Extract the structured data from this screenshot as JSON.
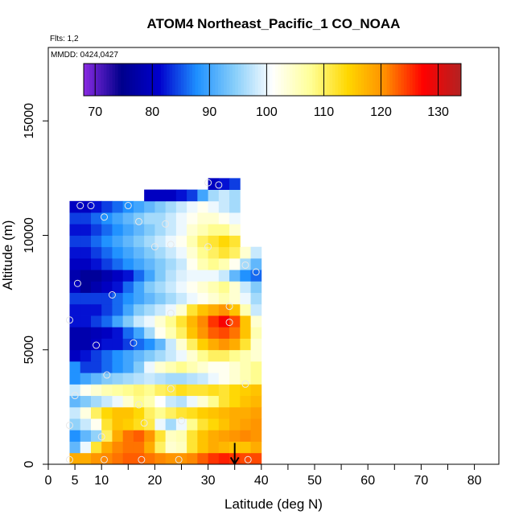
{
  "chart_data": {
    "type": "heatmap",
    "title": "ATOM4 Northeast_Pacific_1 CO_NOAA",
    "flights_note": "Flts: 1,2",
    "dates_note": "MMDD: 0424,0427",
    "xlabel": "Latitude (deg N)",
    "ylabel": "Altitude (m)",
    "xlim": [
      0,
      85
    ],
    "ylim": [
      0,
      18000
    ],
    "x_ticks": [
      0,
      5,
      10,
      20,
      30,
      40,
      50,
      60,
      70,
      80
    ],
    "x_minor_ticks": [
      15,
      25,
      35,
      45,
      55,
      65,
      75,
      85
    ],
    "y_ticks": [
      0,
      5000,
      10000,
      15000
    ],
    "colorbar": {
      "ticks": [
        70,
        80,
        90,
        100,
        110,
        120,
        130
      ],
      "range": [
        68,
        134
      ],
      "colors": [
        "#8a2be2",
        "#00008b",
        "#0000cd",
        "#1e90ff",
        "#87cefa",
        "#ffffff",
        "#ffff99",
        "#ffd700",
        "#ff8c00",
        "#ff0000",
        "#b22222"
      ]
    },
    "lat_bins": [
      4,
      6,
      8,
      10,
      12,
      14,
      16,
      18,
      20,
      22,
      24,
      26,
      28,
      30,
      32,
      34,
      36,
      38
    ],
    "alt_step": 500,
    "rows": [
      {
        "alt": 0,
        "values": [
          118,
          118,
          120,
          121,
          122,
          123,
          123,
          122,
          121,
          120,
          120,
          121,
          123,
          125,
          126,
          125,
          124,
          124
        ]
      },
      {
        "alt": 500,
        "values": [
          92,
          100,
          112,
          118,
          121,
          122,
          122,
          118,
          110,
          104,
          105,
          112,
          116,
          118,
          117,
          116,
          116,
          118
        ]
      },
      {
        "alt": 1000,
        "values": [
          88,
          92,
          95,
          110,
          118,
          122,
          123,
          120,
          112,
          105,
          106,
          112,
          116,
          118,
          119,
          120,
          121,
          120
        ]
      },
      {
        "alt": 1500,
        "values": [
          95,
          98,
          102,
          112,
          116,
          115,
          113,
          111,
          100,
          96,
          100,
          108,
          112,
          114,
          116,
          118,
          119,
          120
        ]
      },
      {
        "alt": 2000,
        "values": [
          98,
          103,
          110,
          114,
          116,
          116,
          114,
          110,
          108,
          110,
          112,
          113,
          115,
          116,
          117,
          118,
          118,
          119
        ]
      },
      {
        "alt": 2500,
        "values": [
          92,
          94,
          96,
          98,
          100,
          104,
          108,
          106,
          101,
          98,
          97,
          100,
          104,
          108,
          112,
          114,
          116,
          117
        ]
      },
      {
        "alt": 3000,
        "values": [
          98,
          102,
          104,
          106,
          107,
          108,
          109,
          108,
          110,
          111,
          113,
          112,
          112,
          113,
          112,
          114,
          115,
          116
        ]
      },
      {
        "alt": 3500,
        "values": [
          88,
          90,
          92,
          94,
          95,
          96,
          97,
          98,
          97,
          96,
          96,
          97,
          98,
          100,
          102,
          104,
          106,
          108
        ]
      },
      {
        "alt": 4000,
        "values": [
          88,
          84,
          84,
          86,
          88,
          90,
          94,
          100,
          104,
          106,
          108,
          106,
          104,
          102,
          102,
          104,
          106,
          108
        ]
      },
      {
        "alt": 4500,
        "values": [
          80,
          82,
          84,
          86,
          88,
          90,
          92,
          94,
          96,
          98,
          100,
          104,
          108,
          110,
          110,
          108,
          106,
          104
        ]
      },
      {
        "alt": 5000,
        "values": [
          78,
          78,
          80,
          82,
          82,
          84,
          86,
          88,
          92,
          98,
          104,
          110,
          115,
          118,
          120,
          118,
          112,
          104
        ]
      },
      {
        "alt": 5500,
        "values": [
          78,
          78,
          79,
          80,
          82,
          86,
          90,
          96,
          102,
          106,
          110,
          116,
          120,
          123,
          124,
          122,
          116,
          106
        ]
      },
      {
        "alt": 6000,
        "values": [
          82,
          82,
          84,
          86,
          90,
          94,
          98,
          100,
          104,
          108,
          112,
          117,
          121,
          125,
          128,
          124,
          116,
          104
        ]
      },
      {
        "alt": 6500,
        "values": [
          82,
          82,
          82,
          84,
          86,
          90,
          94,
          96,
          98,
          100,
          104,
          112,
          116,
          118,
          120,
          116,
          106,
          98
        ]
      },
      {
        "alt": 7000,
        "values": [
          84,
          84,
          84,
          84,
          86,
          88,
          90,
          92,
          94,
          96,
          98,
          100,
          102,
          104,
          106,
          104,
          100,
          96
        ]
      },
      {
        "alt": 7500,
        "values": [
          80,
          76,
          78,
          80,
          82,
          86,
          90,
          94,
          96,
          98,
          100,
          102,
          104,
          106,
          108,
          104,
          98,
          94
        ]
      },
      {
        "alt": 8000,
        "values": [
          78,
          76,
          76,
          78,
          80,
          82,
          86,
          90,
          94,
          97,
          99,
          100,
          100,
          100,
          98,
          92,
          88,
          86
        ]
      },
      {
        "alt": 8500,
        "values": [
          80,
          80,
          82,
          84,
          86,
          88,
          90,
          92,
          94,
          96,
          98,
          102,
          106,
          108,
          106,
          102,
          96,
          92
        ]
      },
      {
        "alt": 9000,
        "values": [
          82,
          82,
          84,
          86,
          88,
          90,
          92,
          94,
          96,
          98,
          100,
          104,
          108,
          110,
          112,
          110,
          104,
          98
        ]
      },
      {
        "alt": 9500,
        "values": [
          84,
          84,
          86,
          88,
          90,
          92,
          94,
          96,
          98,
          100,
          102,
          106,
          110,
          112,
          114,
          112,
          null,
          null
        ]
      },
      {
        "alt": 10000,
        "values": [
          82,
          82,
          84,
          86,
          88,
          90,
          92,
          94,
          96,
          98,
          100,
          104,
          106,
          108,
          108,
          104,
          null,
          null
        ]
      },
      {
        "alt": 10500,
        "values": [
          84,
          84,
          86,
          88,
          90,
          92,
          94,
          96,
          96,
          98,
          100,
          102,
          104,
          104,
          102,
          100,
          null,
          null
        ]
      },
      {
        "alt": 11000,
        "values": [
          80,
          80,
          82,
          84,
          86,
          88,
          90,
          92,
          94,
          96,
          98,
          100,
          102,
          100,
          98,
          96,
          null,
          null
        ]
      },
      {
        "alt": 11500,
        "values": [
          null,
          null,
          null,
          null,
          null,
          null,
          null,
          80,
          80,
          80,
          82,
          84,
          90,
          96,
          98,
          96,
          null,
          null
        ]
      },
      {
        "alt": 12000,
        "values": [
          null,
          null,
          null,
          null,
          null,
          null,
          null,
          null,
          null,
          null,
          null,
          null,
          null,
          80,
          82,
          84,
          null,
          null
        ]
      }
    ],
    "sample_points": [
      {
        "lat": 6,
        "alt": 11300
      },
      {
        "lat": 8,
        "alt": 11300
      },
      {
        "lat": 10.5,
        "alt": 10800
      },
      {
        "lat": 15,
        "alt": 11300
      },
      {
        "lat": 17,
        "alt": 10600
      },
      {
        "lat": 22,
        "alt": 10500
      },
      {
        "lat": 20,
        "alt": 9500
      },
      {
        "lat": 23,
        "alt": 9600
      },
      {
        "lat": 30,
        "alt": 9500
      },
      {
        "lat": 37,
        "alt": 8700
      },
      {
        "lat": 39,
        "alt": 8400
      },
      {
        "lat": 5.5,
        "alt": 7900
      },
      {
        "lat": 12,
        "alt": 7400
      },
      {
        "lat": 23,
        "alt": 6600
      },
      {
        "lat": 34,
        "alt": 6900
      },
      {
        "lat": 34,
        "alt": 6200
      },
      {
        "lat": 4,
        "alt": 6300
      },
      {
        "lat": 9,
        "alt": 5200
      },
      {
        "lat": 16,
        "alt": 5300
      },
      {
        "lat": 11,
        "alt": 3900
      },
      {
        "lat": 23,
        "alt": 3300
      },
      {
        "lat": 37,
        "alt": 3500
      },
      {
        "lat": 5,
        "alt": 3000
      },
      {
        "lat": 17,
        "alt": 2600
      },
      {
        "lat": 4,
        "alt": 1700
      },
      {
        "lat": 18,
        "alt": 1800
      },
      {
        "lat": 25,
        "alt": 1900
      },
      {
        "lat": 10,
        "alt": 1200
      },
      {
        "lat": 4,
        "alt": 200
      },
      {
        "lat": 10.5,
        "alt": 200
      },
      {
        "lat": 17.5,
        "alt": 200
      },
      {
        "lat": 24.5,
        "alt": 200
      },
      {
        "lat": 37.5,
        "alt": 200
      },
      {
        "lat": 30,
        "alt": 12300
      },
      {
        "lat": 32,
        "alt": 12200
      }
    ],
    "marker": {
      "lat": 35,
      "alt": 300
    }
  }
}
